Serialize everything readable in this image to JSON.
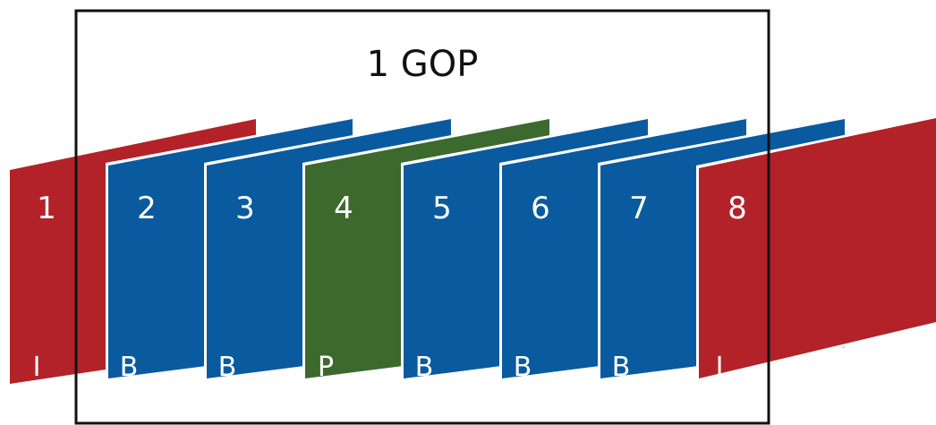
{
  "gop": {
    "label": "1 GOP"
  },
  "colors": {
    "I": "#b22228",
    "B": "#0a5aa0",
    "P": "#3c6a2e",
    "box": "#111111"
  },
  "frames": [
    {
      "number": "1",
      "type": "I"
    },
    {
      "number": "2",
      "type": "B"
    },
    {
      "number": "3",
      "type": "B"
    },
    {
      "number": "4",
      "type": "P"
    },
    {
      "number": "5",
      "type": "B"
    },
    {
      "number": "6",
      "type": "B"
    },
    {
      "number": "7",
      "type": "B"
    },
    {
      "number": "8",
      "type": "I"
    }
  ]
}
